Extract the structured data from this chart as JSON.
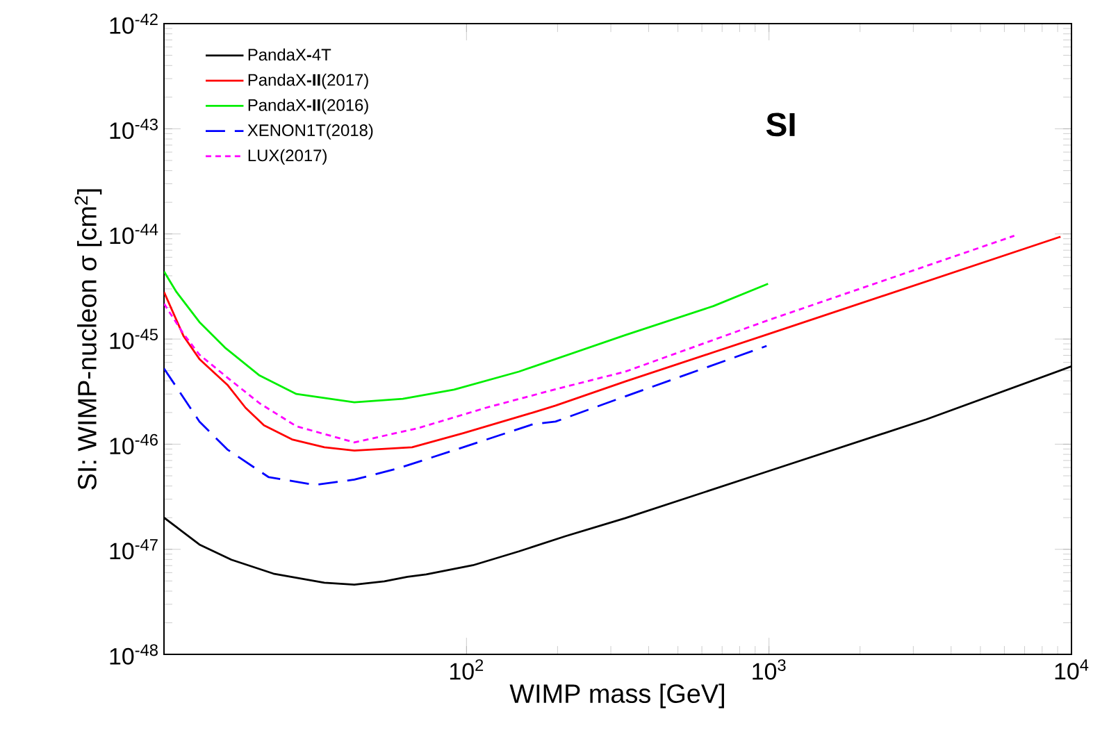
{
  "chart_data": {
    "type": "line",
    "xlabel": "WIMP mass [GeV]",
    "ylabel": "SI: WIMP-nucleon σ [cm$^{2}$]",
    "annotations": [
      "SI"
    ],
    "log": "xy",
    "legend": "top left",
    "grid": false,
    "marker": "none",
    "xlim": [
      10,
      10000
    ],
    "xticks": [
      {
        "value": 100,
        "label": "10$^{2}$"
      },
      {
        "value": 1000,
        "label": "10$^{3}$"
      },
      {
        "value": 10000,
        "label": "10$^{4}$"
      }
    ],
    "ylim": [
      1e-48,
      1e-42
    ],
    "yticks": [
      {
        "value": 1e-48,
        "label": "10$^{-48}$"
      },
      {
        "value": 1e-47,
        "label": "10$^{-47}$"
      },
      {
        "value": 1e-46,
        "label": "10$^{-46}$"
      },
      {
        "value": 1e-45,
        "label": "10$^{-45}$"
      },
      {
        "value": 1e-44,
        "label": "10$^{-44}$"
      },
      {
        "value": 1e-43,
        "label": "10$^{-43}$"
      },
      {
        "value": 1e-42,
        "label": "10$^{-42}$"
      }
    ],
    "series": [
      {
        "name": "PandaX**-**4T",
        "color": "#000000",
        "line_style": "solid",
        "x": [
          10,
          13.1,
          16.7,
          23.0,
          33.9,
          42.6,
          53.5,
          63.8,
          73.6,
          105,
          149,
          212,
          335,
          964,
          3310,
          10000
        ],
        "values": [
          2e-47,
          1.11e-47,
          7.96e-48,
          5.87e-48,
          4.81e-48,
          4.61e-48,
          4.95e-48,
          5.47e-48,
          5.77e-48,
          7.05e-48,
          9.55e-48,
          1.33e-47,
          1.98e-47,
          5.37e-47,
          1.72e-46,
          5.5e-46
        ]
      },
      {
        "name": "PandaX**-II**(2017)",
        "color": "#ff0000",
        "line_style": "solid",
        "x": [
          10,
          11.6,
          13.1,
          16.2,
          18.6,
          21.4,
          26.5,
          33.9,
          42.6,
          66.1,
          97.5,
          166,
          197,
          335,
          1000,
          9200
        ],
        "values": [
          2.8e-45,
          1.07e-45,
          6.45e-46,
          3.67e-46,
          2.22e-46,
          1.51e-46,
          1.11e-46,
          9.35e-47,
          8.7e-47,
          9.35e-47,
          1.27e-46,
          2e-46,
          2.33e-46,
          3.95e-46,
          1.12e-45,
          9.4e-45
        ]
      },
      {
        "name": "PandaX**-II**(2016)",
        "color": "#00ee00",
        "line_style": "solid",
        "x": [
          10,
          11.0,
          13.1,
          15.9,
          20.7,
          27.4,
          42.6,
          61.6,
          91,
          149,
          197,
          335,
          655,
          993
        ],
        "values": [
          4.4e-45,
          2.8e-45,
          1.45e-45,
          8.3e-46,
          4.5e-46,
          3e-46,
          2.5e-46,
          2.7e-46,
          3.3e-46,
          4.9e-46,
          6.45e-46,
          1.09e-45,
          2.06e-45,
          3.36e-45
        ]
      },
      {
        "name": "XENON1T(2018)",
        "color": "#0000ff",
        "line_style": "dashed",
        "x": [
          10,
          13.1,
          16.2,
          22.2,
          31.6,
          42.6,
          59.6,
          97.5,
          166,
          197,
          335,
          982
        ],
        "values": [
          5.25e-46,
          1.64e-46,
          8.9e-47,
          4.85e-47,
          4.1e-47,
          4.6e-47,
          5.9e-47,
          9.35e-47,
          1.55e-46,
          1.64e-46,
          2.85e-46,
          8.6e-46
        ]
      },
      {
        "name": "LUX(2017)",
        "color": "#ff00ff",
        "line_style": "dotted",
        "x": [
          10,
          11.6,
          13.1,
          16.2,
          20.7,
          27.4,
          42.6,
          68.5,
          116,
          197,
          335,
          1000,
          6470
        ],
        "values": [
          2.17e-45,
          1.12e-45,
          7.1e-46,
          4.3e-46,
          2.45e-46,
          1.48e-46,
          1.04e-46,
          1.41e-46,
          2.22e-46,
          3.33e-46,
          4.9e-46,
          1.52e-45,
          9.6e-45
        ]
      }
    ]
  }
}
